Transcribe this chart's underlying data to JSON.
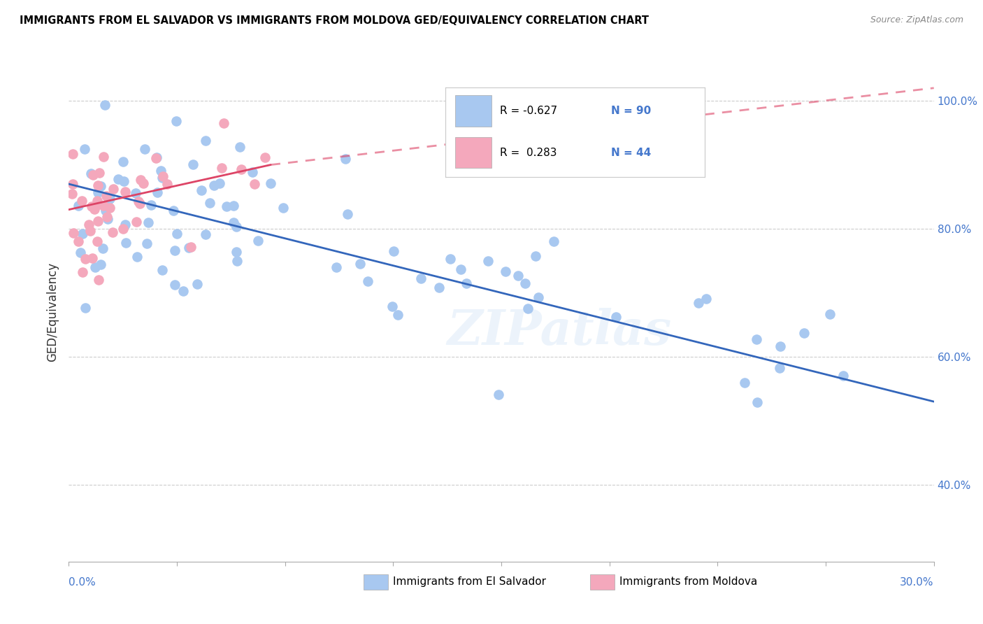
{
  "title": "IMMIGRANTS FROM EL SALVADOR VS IMMIGRANTS FROM MOLDOVA GED/EQUIVALENCY CORRELATION CHART",
  "source": "Source: ZipAtlas.com",
  "ylabel": "GED/Equivalency",
  "xlim": [
    0.0,
    30.0
  ],
  "ylim": [
    28.0,
    106.0
  ],
  "yticks": [
    40.0,
    60.0,
    80.0,
    100.0
  ],
  "ytick_labels": [
    "40.0%",
    "60.0%",
    "80.0%",
    "100.0%"
  ],
  "legend_R_blue": "-0.627",
  "legend_N_blue": "90",
  "legend_R_pink": "0.283",
  "legend_N_pink": "44",
  "legend_label_blue": "Immigrants from El Salvador",
  "legend_label_pink": "Immigrants from Moldova",
  "blue_color": "#a8c8f0",
  "pink_color": "#f4a8bc",
  "blue_line_color": "#3366bb",
  "pink_line_color": "#dd4466",
  "watermark_text": "ZIPatlas",
  "blue_trend_x0": 0.0,
  "blue_trend_y0": 87.0,
  "blue_trend_x1": 30.0,
  "blue_trend_y1": 53.0,
  "pink_trend_x0": 0.0,
  "pink_trend_y0": 83.0,
  "pink_trend_x1_solid": 7.0,
  "pink_trend_y1_solid": 90.0,
  "pink_trend_x1_dash": 30.0,
  "pink_trend_y1_dash": 102.0
}
